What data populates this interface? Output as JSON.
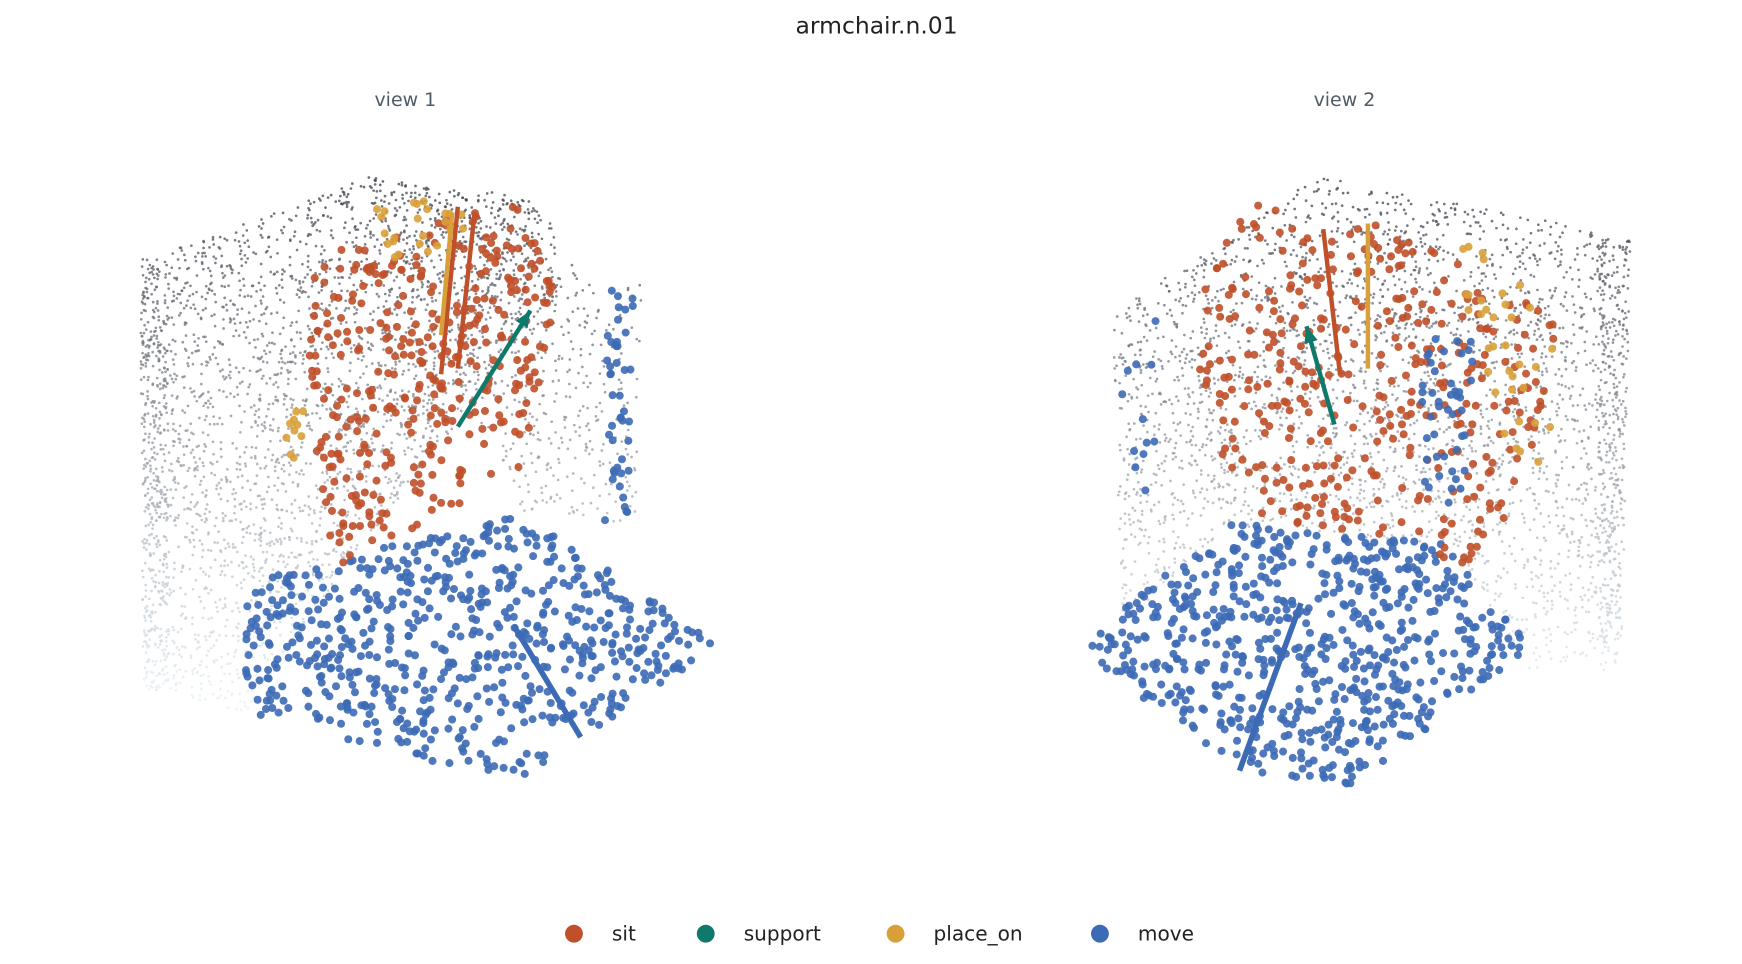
{
  "title": "armchair.n.01",
  "panels": [
    {
      "title": "view 1"
    },
    {
      "title": "view 2"
    }
  ],
  "legend": [
    {
      "label": "sit",
      "color": "#c0502a"
    },
    {
      "label": "support",
      "color": "#0f7a6b"
    },
    {
      "label": "place_on",
      "color": "#d9a03a"
    },
    {
      "label": "move",
      "color": "#3c6ab5"
    }
  ]
}
